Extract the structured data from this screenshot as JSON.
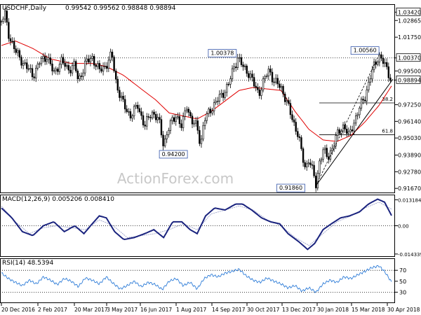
{
  "chart_data": [
    {
      "type": "candlestick",
      "symbol_label": "USDCHF,Daily",
      "ohlc_label": "0.99542 0.99562 0.98848 0.98894",
      "y_ticks": [
        "1.03420",
        "1.02865",
        "1.01750",
        "1.00370",
        "0.99500",
        "0.98894",
        "0.97250",
        "0.96140",
        "0.95030",
        "0.93890",
        "0.92780",
        "0.91670"
      ],
      "y_tick_values": [
        1.0342,
        1.02865,
        1.0175,
        1.0037,
        0.995,
        0.98894,
        0.9725,
        0.9614,
        0.9503,
        0.9389,
        0.9278,
        0.9167
      ],
      "highlight_ticks": [
        "1.03420",
        "1.00370",
        "0.98894"
      ],
      "x_labels": [
        "20 Dec 2016",
        "2 Feb 2017",
        "20 Mar 2017",
        "3 May 2017",
        "16 Jun 2017",
        "1 Aug 2017",
        "14 Sep 2017",
        "30 Oct 2017",
        "13 Dec 2017",
        "30 Jan 2018",
        "15 Mar 2018",
        "30 Apr 2018"
      ],
      "annotations": [
        {
          "text": "1.00378",
          "value": 1.00378
        },
        {
          "text": "1.00560",
          "value": 1.0056
        },
        {
          "text": "0.94200",
          "value": 0.942
        },
        {
          "text": "0.91860",
          "value": 0.9186
        }
      ],
      "fib_levels": [
        {
          "label": "38.2",
          "value": 0.9737
        },
        {
          "label": "61.8",
          "value": 0.9525
        }
      ],
      "dotted_levels": [
        1.0037,
        0.98894
      ],
      "price_path": [
        [
          0,
          1.028
        ],
        [
          5,
          1.033
        ],
        [
          10,
          1.02
        ],
        [
          20,
          1.008
        ],
        [
          35,
          0.998
        ],
        [
          45,
          0.992
        ],
        [
          55,
          1.001
        ],
        [
          65,
          1.005
        ],
        [
          75,
          0.993
        ],
        [
          85,
          1.002
        ],
        [
          95,
          0.996
        ],
        [
          105,
          0.999
        ],
        [
          110,
          0.988
        ],
        [
          120,
          1.0
        ],
        [
          130,
          1.004
        ],
        [
          140,
          0.995
        ],
        [
          150,
          0.999
        ],
        [
          158,
          1.006
        ],
        [
          165,
          0.985
        ],
        [
          175,
          0.972
        ],
        [
          185,
          0.965
        ],
        [
          195,
          0.972
        ],
        [
          205,
          0.958
        ],
        [
          215,
          0.968
        ],
        [
          225,
          0.962
        ],
        [
          232,
          0.946
        ],
        [
          240,
          0.958
        ],
        [
          250,
          0.966
        ],
        [
          258,
          0.957
        ],
        [
          265,
          0.973
        ],
        [
          272,
          0.961
        ],
        [
          280,
          0.958
        ],
        [
          285,
          0.946
        ],
        [
          290,
          0.962
        ],
        [
          300,
          0.97
        ],
        [
          310,
          0.976
        ],
        [
          318,
          0.981
        ],
        [
          325,
          0.986
        ],
        [
          332,
          0.997
        ],
        [
          338,
          1.0037
        ],
        [
          345,
          0.998
        ],
        [
          355,
          0.993
        ],
        [
          362,
          0.985
        ],
        [
          368,
          0.98
        ],
        [
          375,
          0.988
        ],
        [
          383,
          0.996
        ],
        [
          390,
          0.988
        ],
        [
          400,
          0.984
        ],
        [
          407,
          0.976
        ],
        [
          413,
          0.967
        ],
        [
          420,
          0.958
        ],
        [
          425,
          0.952
        ],
        [
          430,
          0.938
        ],
        [
          435,
          0.93
        ],
        [
          440,
          0.937
        ],
        [
          445,
          0.928
        ],
        [
          450,
          0.9186
        ],
        [
          455,
          0.935
        ],
        [
          460,
          0.942
        ],
        [
          467,
          0.937
        ],
        [
          475,
          0.946
        ],
        [
          482,
          0.954
        ],
        [
          490,
          0.959
        ],
        [
          497,
          0.951
        ],
        [
          505,
          0.962
        ],
        [
          512,
          0.97
        ],
        [
          520,
          0.978
        ],
        [
          527,
          0.99
        ],
        [
          533,
          0.998
        ],
        [
          540,
          1.0056
        ],
        [
          545,
          1.002
        ],
        [
          552,
          0.995
        ],
        [
          558,
          0.98894
        ]
      ],
      "sma_path": [
        [
          0,
          1.012
        ],
        [
          20,
          1.015
        ],
        [
          45,
          1.01
        ],
        [
          70,
          1.003
        ],
        [
          100,
          1.0
        ],
        [
          130,
          1.0
        ],
        [
          150,
          0.998
        ],
        [
          175,
          0.992
        ],
        [
          200,
          0.983
        ],
        [
          220,
          0.976
        ],
        [
          240,
          0.967
        ],
        [
          260,
          0.965
        ],
        [
          280,
          0.963
        ],
        [
          300,
          0.968
        ],
        [
          320,
          0.975
        ],
        [
          340,
          0.982
        ],
        [
          360,
          0.984
        ],
        [
          380,
          0.983
        ],
        [
          400,
          0.982
        ],
        [
          420,
          0.968
        ],
        [
          440,
          0.956
        ],
        [
          460,
          0.949
        ],
        [
          480,
          0.948
        ],
        [
          500,
          0.952
        ],
        [
          520,
          0.961
        ],
        [
          540,
          0.972
        ],
        [
          558,
          0.985
        ]
      ],
      "trendline_solid": [
        [
          450,
          0.9186
        ],
        [
          560,
          0.9895
        ]
      ],
      "trendline_dashed": [
        [
          450,
          0.9186
        ],
        [
          540,
          1.0056
        ]
      ]
    },
    {
      "type": "line",
      "label": "MACD(12,26,9) 0.005206 0.008410",
      "y_ticks": [
        "0.013184",
        "0.00",
        "-0.014339"
      ],
      "y_tick_values": [
        0.013184,
        0,
        -0.014339
      ],
      "x_labels": [],
      "series": [
        {
          "points": [
            [
              0,
              0.009
            ],
            [
              15,
              0.004
            ],
            [
              30,
              -0.003
            ],
            [
              45,
              -0.005
            ],
            [
              60,
              0.0
            ],
            [
              75,
              0.002
            ],
            [
              90,
              -0.003
            ],
            [
              105,
              0.0
            ],
            [
              118,
              -0.004
            ],
            [
              130,
              0.001
            ],
            [
              140,
              0.005
            ],
            [
              150,
              0.004
            ],
            [
              162,
              -0.003
            ],
            [
              175,
              -0.007
            ],
            [
              190,
              -0.006
            ],
            [
              205,
              -0.004
            ],
            [
              218,
              -0.002
            ],
            [
              232,
              -0.006
            ],
            [
              245,
              0.002
            ],
            [
              258,
              0.002
            ],
            [
              270,
              -0.002
            ],
            [
              280,
              -0.004
            ],
            [
              292,
              0.005
            ],
            [
              305,
              0.009
            ],
            [
              320,
              0.008
            ],
            [
              335,
              0.011
            ],
            [
              345,
              0.011
            ],
            [
              358,
              0.008
            ],
            [
              372,
              0.004
            ],
            [
              385,
              0.002
            ],
            [
              398,
              0.001
            ],
            [
              410,
              -0.004
            ],
            [
              425,
              -0.008
            ],
            [
              438,
              -0.012
            ],
            [
              448,
              -0.009
            ],
            [
              460,
              -0.002
            ],
            [
              472,
              0.001
            ],
            [
              485,
              0.004
            ],
            [
              498,
              0.005
            ],
            [
              512,
              0.007
            ],
            [
              525,
              0.011
            ],
            [
              538,
              0.0135
            ],
            [
              548,
              0.012
            ],
            [
              558,
              0.0052
            ]
          ]
        },
        {
          "points": [
            [
              0,
              0.01
            ],
            [
              20,
              0.002
            ],
            [
              40,
              -0.004
            ],
            [
              60,
              -0.001
            ],
            [
              80,
              0.0
            ],
            [
              100,
              -0.001
            ],
            [
              120,
              -0.002
            ],
            [
              140,
              0.003
            ],
            [
              160,
              0.0
            ],
            [
              180,
              -0.006
            ],
            [
              200,
              -0.005
            ],
            [
              220,
              -0.004
            ],
            [
              240,
              -0.002
            ],
            [
              260,
              0.001
            ],
            [
              280,
              -0.002
            ],
            [
              300,
              0.006
            ],
            [
              320,
              0.008
            ],
            [
              340,
              0.01
            ],
            [
              360,
              0.008
            ],
            [
              380,
              0.003
            ],
            [
              400,
              0.0
            ],
            [
              420,
              -0.006
            ],
            [
              440,
              -0.01
            ],
            [
              460,
              -0.004
            ],
            [
              480,
              0.002
            ],
            [
              500,
              0.005
            ],
            [
              520,
              0.009
            ],
            [
              540,
              0.012
            ],
            [
              558,
              0.0084
            ]
          ]
        }
      ]
    },
    {
      "type": "line",
      "label": "RSI(14) 48.5394",
      "y_ticks": [
        "70",
        "50",
        "30"
      ],
      "y_tick_values": [
        70,
        50,
        30
      ],
      "x_labels": [],
      "series": [
        {
          "points": [
            [
              0,
              65
            ],
            [
              10,
              55
            ],
            [
              20,
              48
            ],
            [
              30,
              42
            ],
            [
              40,
              52
            ],
            [
              50,
              45
            ],
            [
              60,
              58
            ],
            [
              70,
              52
            ],
            [
              80,
              44
            ],
            [
              90,
              55
            ],
            [
              100,
              50
            ],
            [
              110,
              40
            ],
            [
              120,
              56
            ],
            [
              130,
              52
            ],
            [
              140,
              45
            ],
            [
              150,
              58
            ],
            [
              160,
              46
            ],
            [
              170,
              36
            ],
            [
              180,
              42
            ],
            [
              190,
              50
            ],
            [
              200,
              40
            ],
            [
              210,
              48
            ],
            [
              220,
              44
            ],
            [
              230,
              35
            ],
            [
              240,
              50
            ],
            [
              250,
              55
            ],
            [
              260,
              42
            ],
            [
              270,
              48
            ],
            [
              280,
              36
            ],
            [
              290,
              55
            ],
            [
              300,
              62
            ],
            [
              310,
              58
            ],
            [
              320,
              65
            ],
            [
              330,
              68
            ],
            [
              340,
              72
            ],
            [
              350,
              60
            ],
            [
              360,
              52
            ],
            [
              370,
              48
            ],
            [
              380,
              56
            ],
            [
              390,
              50
            ],
            [
              400,
              45
            ],
            [
              410,
              38
            ],
            [
              420,
              42
            ],
            [
              430,
              32
            ],
            [
              440,
              38
            ],
            [
              450,
              30
            ],
            [
              460,
              45
            ],
            [
              470,
              52
            ],
            [
              480,
              48
            ],
            [
              490,
              58
            ],
            [
              500,
              55
            ],
            [
              510,
              62
            ],
            [
              520,
              68
            ],
            [
              530,
              75
            ],
            [
              540,
              78
            ],
            [
              548,
              68
            ],
            [
              558,
              48.54
            ]
          ]
        }
      ]
    }
  ],
  "watermark": "ActionForex.com"
}
